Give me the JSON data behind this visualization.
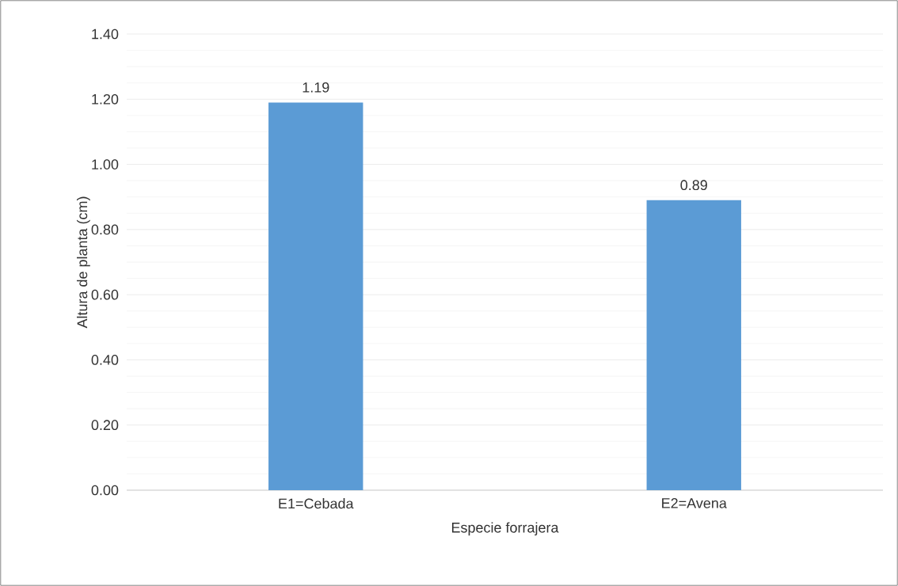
{
  "chart_data": {
    "type": "bar",
    "xlabel": "Especie forrajera",
    "ylabel": "Altura de planta (cm)",
    "categories": [
      "E1=Cebada",
      "E2=Avena"
    ],
    "values": [
      1.19,
      0.89
    ],
    "value_labels": [
      "1.19",
      "0.89"
    ],
    "color": "#5b9bd5",
    "ylim": [
      0,
      1.4
    ],
    "yticks": [
      {
        "value": 0,
        "label": "0.00"
      },
      {
        "value": 0.2,
        "label": "0.20"
      },
      {
        "value": 0.4,
        "label": "0.40"
      },
      {
        "value": 0.6,
        "label": "0.60"
      },
      {
        "value": 0.8,
        "label": "0.80"
      },
      {
        "value": 1.0,
        "label": "1.00"
      },
      {
        "value": 1.2,
        "label": "1.20"
      },
      {
        "value": 1.4,
        "label": "1.40"
      }
    ],
    "grid": "y"
  }
}
